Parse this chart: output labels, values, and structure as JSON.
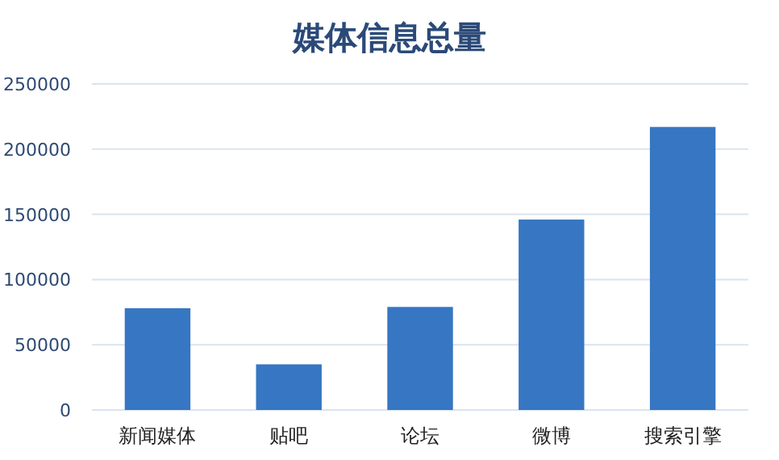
{
  "chart_data": {
    "type": "bar",
    "title": "媒体信息总量",
    "categories": [
      "新闻媒体",
      "贴吧",
      "论坛",
      "微博",
      "搜索引擎"
    ],
    "values": [
      78000,
      35000,
      79000,
      146000,
      217000
    ],
    "color": "#3776c2",
    "ylim": [
      0,
      250000
    ],
    "yticks": [
      0,
      50000,
      100000,
      150000,
      200000,
      250000
    ],
    "grid": "y"
  }
}
